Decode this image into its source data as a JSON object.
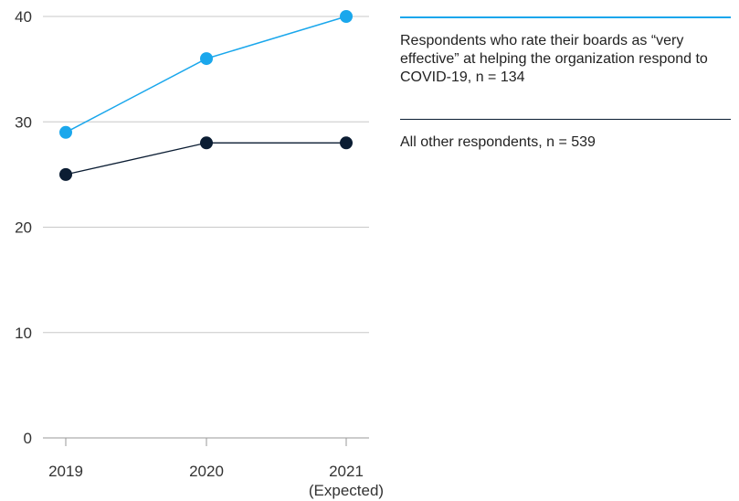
{
  "chart_data": {
    "type": "line",
    "title": "",
    "xlabel": "",
    "ylabel": "",
    "categories": [
      "2019",
      "2020",
      "2021"
    ],
    "category_sublabels": [
      "",
      "",
      "(Expected)"
    ],
    "ylim": [
      0,
      40
    ],
    "yticks": [
      0,
      10,
      20,
      30,
      40
    ],
    "grid": true,
    "legend_position": "right",
    "series": [
      {
        "name": "Respondents who rate their boards as “very effective” at helping the organization respond to COVID-19, n = 134",
        "values": [
          29,
          36,
          40
        ],
        "color": "#1aa7ec"
      },
      {
        "name": "All other respondents, n = 539",
        "values": [
          25,
          28,
          28
        ],
        "color": "#0b1d33"
      }
    ]
  }
}
